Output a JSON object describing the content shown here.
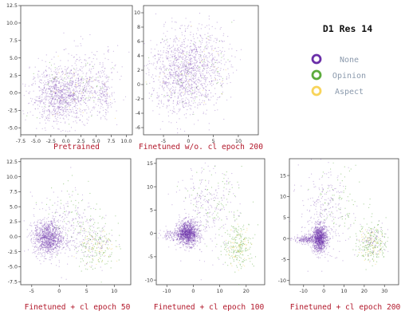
{
  "chart_data": {
    "type": "scatter",
    "legend": {
      "title": "D1 Res 14",
      "placement": "top-right",
      "entries": [
        {
          "name": "None",
          "color": "#6a2fa8"
        },
        {
          "name": "Opinion",
          "color": "#5cab3c"
        },
        {
          "name": "Aspect",
          "color": "#f8d45a"
        }
      ]
    },
    "panels": [
      {
        "id": "pretrained",
        "caption": "Pretrained",
        "xlim": [
          -7.5,
          11
        ],
        "ylim": [
          -6,
          12.5
        ],
        "xticks": [
          "-7.5",
          "-5.0",
          "-2.5",
          "0.0",
          "2.5",
          "5.0",
          "7.5",
          "10.0"
        ],
        "yticks": [
          "-5.0",
          "-2.5",
          "0.0",
          "2.5",
          "5.0",
          "7.5",
          "10.0",
          "12.5"
        ],
        "clusters": [
          {
            "cls": 0,
            "cx": -1.0,
            "cy": -0.5,
            "sx": 2.4,
            "sy": 1.9,
            "n": 900
          },
          {
            "cls": 0,
            "cx": 3.0,
            "cy": 1.5,
            "sx": 3.0,
            "sy": 2.5,
            "n": 350
          },
          {
            "cls": 0,
            "cx": 6.3,
            "cy": -0.5,
            "sx": 0.6,
            "sy": 1.6,
            "n": 120
          },
          {
            "cls": 1,
            "cx": 1.0,
            "cy": 0.5,
            "sx": 3.5,
            "sy": 2.2,
            "n": 60
          },
          {
            "cls": 2,
            "cx": 1.0,
            "cy": 0.5,
            "sx": 3.0,
            "sy": 2.0,
            "n": 30
          }
        ]
      },
      {
        "id": "finetuned-wo-cl-200",
        "caption": "Finetuned w/o. cl epoch 200",
        "xlim": [
          -9,
          14
        ],
        "ylim": [
          -7,
          11
        ],
        "xticks": [
          "-5",
          "0",
          "5",
          "10"
        ],
        "yticks": [
          "-6",
          "-4",
          "-2",
          "0",
          "2",
          "4",
          "6",
          "8",
          "10"
        ],
        "clusters": [
          {
            "cls": 0,
            "cx": -1.0,
            "cy": 1.5,
            "sx": 3.5,
            "sy": 2.8,
            "n": 1100
          },
          {
            "cls": 0,
            "cx": 3.0,
            "cy": 3.5,
            "sx": 3.0,
            "sy": 2.5,
            "n": 250
          },
          {
            "cls": 1,
            "cx": 1.0,
            "cy": 2.0,
            "sx": 4.0,
            "sy": 2.8,
            "n": 60
          },
          {
            "cls": 2,
            "cx": 1.0,
            "cy": 2.0,
            "sx": 3.5,
            "sy": 2.5,
            "n": 30
          }
        ]
      },
      {
        "id": "finetuned-cl-50",
        "caption": "Finetuned + cl epoch 50",
        "xlim": [
          -7,
          13
        ],
        "ylim": [
          -8,
          13
        ],
        "xticks": [
          "-5",
          "0",
          "5",
          "10"
        ],
        "yticks": [
          "-7.5",
          "-5.0",
          "-2.5",
          "0.0",
          "2.5",
          "5.0",
          "7.5",
          "10.0",
          "12.5"
        ],
        "clusters": [
          {
            "cls": 0,
            "cx": -2.0,
            "cy": -0.3,
            "sx": 1.3,
            "sy": 1.4,
            "n": 1000
          },
          {
            "cls": 0,
            "cx": 1.0,
            "cy": 1.5,
            "sx": 3.0,
            "sy": 2.8,
            "n": 300
          },
          {
            "cls": 1,
            "cx": 6.5,
            "cy": -1.5,
            "sx": 1.8,
            "sy": 2.0,
            "n": 150
          },
          {
            "cls": 1,
            "cx": 3.0,
            "cy": 4.0,
            "sx": 3.0,
            "sy": 3.0,
            "n": 70
          },
          {
            "cls": 2,
            "cx": 7.0,
            "cy": -2.0,
            "sx": 1.5,
            "sy": 1.5,
            "n": 60
          },
          {
            "cls": 0,
            "cx": 7.0,
            "cy": -1.0,
            "sx": 1.5,
            "sy": 1.5,
            "n": 60
          }
        ]
      },
      {
        "id": "finetuned-cl-100",
        "caption": "Finetuned + cl epoch 100",
        "xlim": [
          -14,
          27
        ],
        "ylim": [
          -11,
          16
        ],
        "xticks": [
          "-10",
          "0",
          "10",
          "20"
        ],
        "yticks": [
          "-10",
          "-5",
          "0",
          "5",
          "10",
          "15"
        ],
        "clusters": [
          {
            "cls": 0,
            "cx": -2.0,
            "cy": 0.0,
            "sx": 2.0,
            "sy": 1.3,
            "n": 1100
          },
          {
            "cls": 0,
            "cx": -6.0,
            "cy": -0.3,
            "sx": 3.5,
            "sy": 0.6,
            "n": 200
          },
          {
            "cls": 0,
            "cx": 5.0,
            "cy": 5.0,
            "sx": 6.0,
            "sy": 4.5,
            "n": 250
          },
          {
            "cls": 1,
            "cx": 17.0,
            "cy": -2.5,
            "sx": 3.0,
            "sy": 2.5,
            "n": 200
          },
          {
            "cls": 1,
            "cx": 9.0,
            "cy": 7.0,
            "sx": 5.0,
            "sy": 3.5,
            "n": 80
          },
          {
            "cls": 2,
            "cx": 17.0,
            "cy": -3.0,
            "sx": 2.5,
            "sy": 2.0,
            "n": 70
          }
        ]
      },
      {
        "id": "finetuned-cl-200",
        "caption": "Finetuned + cl epoch 200",
        "xlim": [
          -17,
          37
        ],
        "ylim": [
          -11,
          19
        ],
        "xticks": [
          "-10",
          "0",
          "10",
          "20",
          "30"
        ],
        "yticks": [
          "-10",
          "-5",
          "0",
          "5",
          "10",
          "15"
        ],
        "clusters": [
          {
            "cls": 0,
            "cx": -2.0,
            "cy": 0.0,
            "sx": 1.8,
            "sy": 1.6,
            "n": 1000
          },
          {
            "cls": 0,
            "cx": -8.0,
            "cy": -0.2,
            "sx": 3.5,
            "sy": 0.5,
            "n": 250
          },
          {
            "cls": 0,
            "cx": 0.0,
            "cy": 6.0,
            "sx": 6.0,
            "sy": 5.0,
            "n": 250
          },
          {
            "cls": 1,
            "cx": 24.0,
            "cy": -1.0,
            "sx": 3.5,
            "sy": 2.5,
            "n": 200
          },
          {
            "cls": 1,
            "cx": 10.0,
            "cy": 9.0,
            "sx": 7.0,
            "sy": 4.0,
            "n": 80
          },
          {
            "cls": 0,
            "cx": 24.0,
            "cy": -0.5,
            "sx": 4.0,
            "sy": 2.0,
            "n": 80
          },
          {
            "cls": 2,
            "cx": 24.0,
            "cy": -1.5,
            "sx": 3.0,
            "sy": 2.0,
            "n": 60
          }
        ]
      }
    ]
  }
}
